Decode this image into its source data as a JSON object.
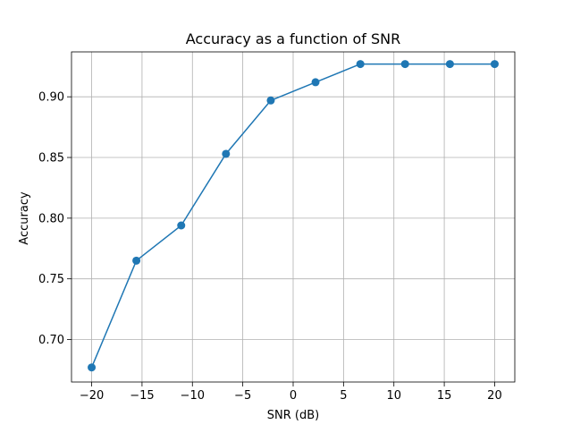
{
  "chart_data": {
    "type": "line",
    "title": "Accuracy as a function of SNR",
    "xlabel": "SNR (dB)",
    "ylabel": "Accuracy",
    "xlim": [
      -22,
      22
    ],
    "ylim": [
      0.665,
      0.937
    ],
    "xticks": [
      -20,
      -15,
      -10,
      -5,
      0,
      5,
      10,
      15,
      20
    ],
    "xtick_labels": [
      "−20",
      "−15",
      "−10",
      "−5",
      "0",
      "5",
      "10",
      "15",
      "20"
    ],
    "yticks": [
      0.7,
      0.75,
      0.8,
      0.85,
      0.9
    ],
    "ytick_labels": [
      "0.70",
      "0.75",
      "0.80",
      "0.85",
      "0.90"
    ],
    "grid": true,
    "series": [
      {
        "color": "#1f77b4",
        "marker": "circle",
        "x": [
          -20.0,
          -15.56,
          -11.11,
          -6.67,
          -2.22,
          2.22,
          6.67,
          11.11,
          15.56,
          20.0
        ],
        "y": [
          0.677,
          0.765,
          0.794,
          0.853,
          0.897,
          0.912,
          0.927,
          0.927,
          0.927,
          0.927
        ]
      }
    ]
  }
}
